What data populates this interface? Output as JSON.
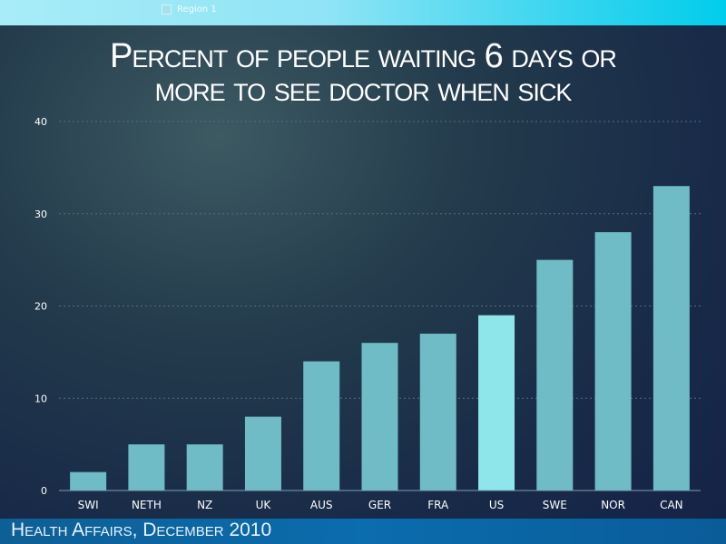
{
  "header": {
    "region_label": "Region 1"
  },
  "footer": {
    "source": "Health Affairs, December 2010"
  },
  "colors": {
    "bar": "#6fbcc6",
    "highlight": "#8ee5ea",
    "grid": "#4f6f80"
  },
  "chart_data": {
    "type": "bar",
    "title": "Percent of people waiting 6 days or more to see doctor when sick",
    "title_lines": [
      "Percent of people waiting 6 days or",
      "more to see doctor when sick"
    ],
    "xlabel": "",
    "ylabel": "",
    "categories": [
      "SWI",
      "NETH",
      "NZ",
      "UK",
      "AUS",
      "GER",
      "FRA",
      "US",
      "SWE",
      "NOR",
      "CAN"
    ],
    "values": [
      2,
      5,
      5,
      8,
      14,
      16,
      17,
      19,
      25,
      28,
      33
    ],
    "highlight": "US",
    "ylim": [
      0,
      40
    ],
    "yticks": [
      0,
      10,
      20,
      30,
      40
    ],
    "grid": true,
    "legend": "none"
  }
}
